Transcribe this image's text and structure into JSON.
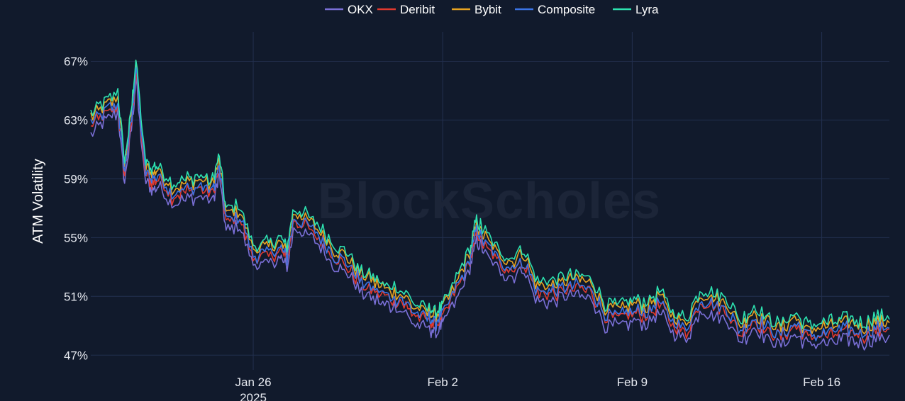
{
  "chart_data": {
    "type": "line",
    "title": "",
    "ylabel": "ATM Volatility",
    "xlabel": "",
    "watermark": "BlockScholes",
    "legend_position": "top-center",
    "grid": true,
    "x_range": [
      "2025-01-20T00:00",
      "2025-02-18T12:00"
    ],
    "ylim": [
      46.0,
      69.0
    ],
    "y_ticks": [
      47,
      51,
      55,
      59,
      63,
      67
    ],
    "y_tick_labels": [
      "47%",
      "51%",
      "55%",
      "59%",
      "63%",
      "67%"
    ],
    "x_ticks": [
      "2025-01-26",
      "2025-02-02",
      "2025-02-09",
      "2025-02-16"
    ],
    "x_tick_labels": [
      "Jan 26\n2025",
      "Feb 2",
      "Feb 9",
      "Feb 16"
    ],
    "colors": {
      "background": "#111a2c",
      "grid": "#23304f",
      "OKX": "#7a6fd6",
      "Deribit": "#e0392f",
      "Bybit": "#e7a321",
      "Composite": "#3b74e6",
      "Lyra": "#2de2b0"
    },
    "series": [
      {
        "name": "OKX",
        "offset": -0.7
      },
      {
        "name": "Deribit",
        "offset": -0.2
      },
      {
        "name": "Bybit",
        "offset": 0.4
      },
      {
        "name": "Composite",
        "offset": 0.0
      },
      {
        "name": "Lyra",
        "offset": 0.7
      }
    ],
    "composite": {
      "x": [
        "2025-01-20T00:00",
        "2025-01-20T12:00",
        "2025-01-21T00:00",
        "2025-01-21T06:00",
        "2025-01-21T12:00",
        "2025-01-21T16:00",
        "2025-01-22T00:00",
        "2025-01-22T06:00",
        "2025-01-22T12:00",
        "2025-01-23T00:00",
        "2025-01-23T12:00",
        "2025-01-24T00:00",
        "2025-01-24T12:00",
        "2025-01-24T18:00",
        "2025-01-25T00:00",
        "2025-01-25T12:00",
        "2025-01-26T00:00",
        "2025-01-26T12:00",
        "2025-01-27T00:00",
        "2025-01-27T06:00",
        "2025-01-27T12:00",
        "2025-01-28T00:00",
        "2025-01-28T12:00",
        "2025-01-29T00:00",
        "2025-01-29T12:00",
        "2025-01-30T00:00",
        "2025-01-30T12:00",
        "2025-01-31T00:00",
        "2025-01-31T12:00",
        "2025-02-01T00:00",
        "2025-02-01T12:00",
        "2025-02-01T18:00",
        "2025-02-02T00:00",
        "2025-02-02T12:00",
        "2025-02-03T00:00",
        "2025-02-03T06:00",
        "2025-02-03T12:00",
        "2025-02-04T00:00",
        "2025-02-04T12:00",
        "2025-02-05T00:00",
        "2025-02-05T12:00",
        "2025-02-06T00:00",
        "2025-02-06T12:00",
        "2025-02-07T00:00",
        "2025-02-07T12:00",
        "2025-02-08T00:00",
        "2025-02-08T12:00",
        "2025-02-09T00:00",
        "2025-02-09T12:00",
        "2025-02-10T00:00",
        "2025-02-10T12:00",
        "2025-02-11T00:00",
        "2025-02-11T12:00",
        "2025-02-12T00:00",
        "2025-02-12T12:00",
        "2025-02-13T00:00",
        "2025-02-13T12:00",
        "2025-02-14T00:00",
        "2025-02-14T12:00",
        "2025-02-15T00:00",
        "2025-02-15T12:00",
        "2025-02-16T00:00",
        "2025-02-16T12:00",
        "2025-02-17T00:00",
        "2025-02-17T12:00",
        "2025-02-18T00:00",
        "2025-02-18T12:00"
      ],
      "y": [
        62.8,
        63.5,
        64.2,
        59.5,
        63.0,
        66.5,
        59.6,
        59.0,
        59.2,
        58.0,
        58.3,
        58.5,
        58.2,
        59.8,
        56.2,
        56.5,
        53.8,
        53.9,
        54.3,
        53.6,
        56.4,
        55.8,
        55.0,
        53.8,
        53.2,
        52.0,
        51.5,
        51.0,
        50.8,
        49.8,
        49.5,
        49.2,
        49.8,
        51.5,
        53.5,
        55.5,
        54.8,
        53.6,
        53.0,
        53.5,
        51.3,
        51.4,
        51.6,
        51.8,
        51.5,
        49.8,
        49.6,
        50.0,
        49.9,
        50.6,
        49.3,
        48.7,
        50.8,
        50.5,
        50.2,
        48.6,
        49.6,
        48.8,
        48.4,
        49.2,
        48.3,
        48.5,
        48.6,
        48.8,
        48.5,
        48.9,
        48.9
      ]
    }
  }
}
